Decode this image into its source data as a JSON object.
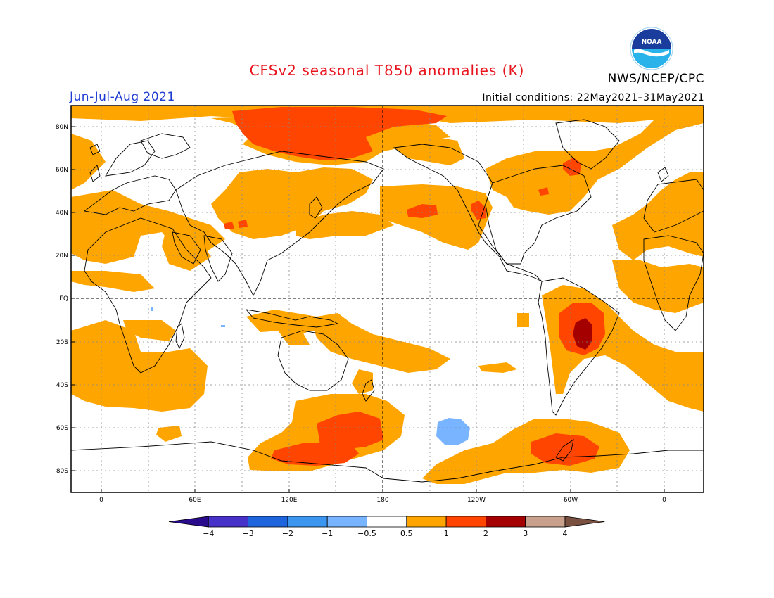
{
  "title": "CFSv2 seasonal T850 anomalies (K)",
  "period": "Jun-Jul-Aug 2021",
  "initial_conditions": "Initial conditions: 22May2021–31May2021",
  "agency": "NWS/NCEP/CPC",
  "logo_text": "NOAA",
  "colors": {
    "anom_0_5_to_1": "#ffa500",
    "anom_1_to_2": "#ff4500",
    "anom_2_to_3": "#a50000",
    "anom_neg_0_5_to_neg_1": "#78b4ff",
    "land_outline": "#000000"
  },
  "lat_labels": [
    "80N",
    "60N",
    "40N",
    "20N",
    "EQ",
    "20S",
    "40S",
    "60S",
    "80S"
  ],
  "lon_labels": [
    "0",
    "60E",
    "120E",
    "180",
    "120W",
    "60W",
    "0"
  ],
  "colorbar": {
    "colors": [
      "#2a0a8c",
      "#4632c8",
      "#1e64dc",
      "#3c96f0",
      "#78b4ff",
      "#ffffff",
      "#ffa500",
      "#ff4500",
      "#a50000",
      "#c8a08c",
      "#7a5040"
    ],
    "labels": [
      "−4",
      "−3",
      "−2",
      "−1",
      "−0.5",
      "0.5",
      "1",
      "2",
      "3",
      "4"
    ]
  }
}
